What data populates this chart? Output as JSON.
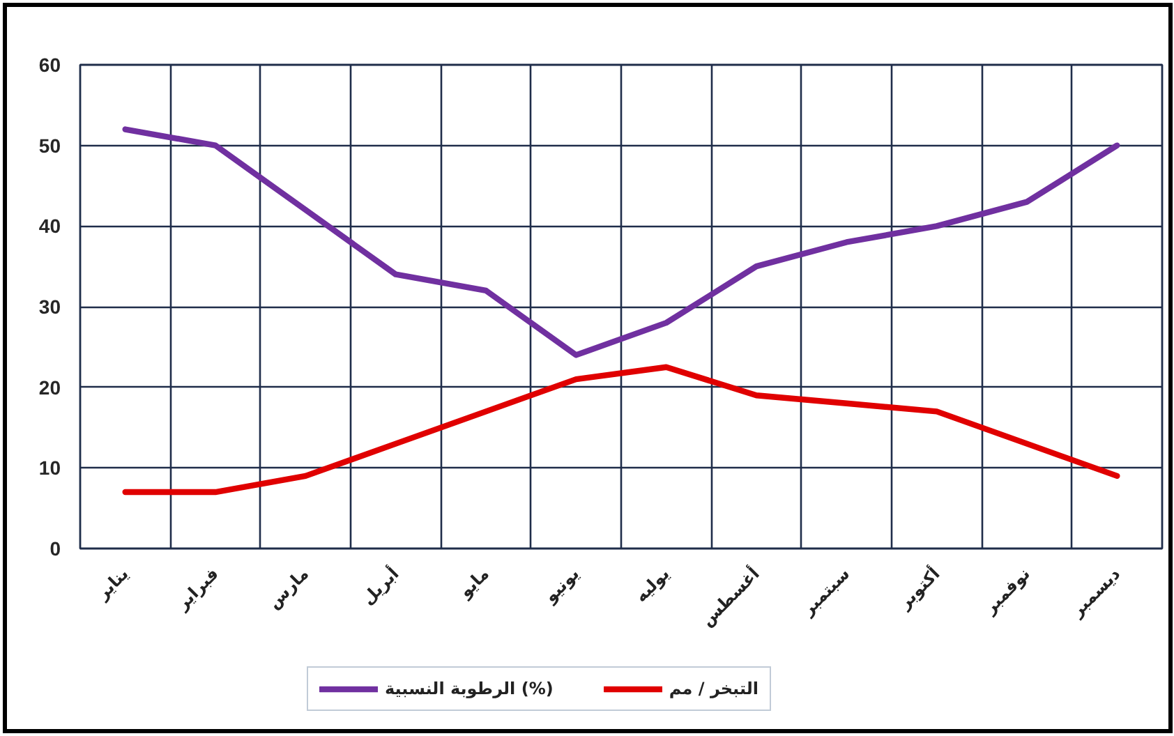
{
  "chart_data": {
    "type": "line",
    "categories": [
      "يناير",
      "فبراير",
      "مارس",
      "أبريل",
      "مايو",
      "يونيو",
      "يوليه",
      "أغسطس",
      "سبتمبر",
      "أكتوبر",
      "نوفمبر",
      "ديسمبر"
    ],
    "series": [
      {
        "name": "الرطوبة النسبية (%)",
        "color": "#7030a0",
        "values": [
          52,
          50,
          42,
          34,
          32,
          24,
          28,
          35,
          38,
          40,
          43,
          50
        ]
      },
      {
        "name": "التبخر / مم",
        "color": "#e00000",
        "values": [
          7,
          7,
          9,
          13,
          17,
          21,
          22.5,
          19,
          18,
          17,
          13,
          9
        ]
      }
    ],
    "ylim": [
      0,
      60
    ],
    "yticks": [
      0,
      10,
      20,
      30,
      40,
      50,
      60
    ],
    "grid": true,
    "legend": "bottom",
    "line_style": "solid"
  }
}
